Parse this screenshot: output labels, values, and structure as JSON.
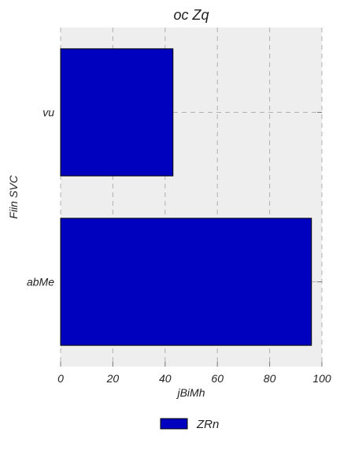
{
  "chart_data": {
    "type": "bar",
    "orientation": "horizontal",
    "title": "oc Zq",
    "xlabel": "jBiMh",
    "ylabel": "Fiin SVC",
    "categories": [
      "abMe",
      "vu"
    ],
    "series": [
      {
        "name": "ZRn",
        "values": [
          96,
          43
        ],
        "color": "#0000bf"
      }
    ],
    "xlim": [
      0,
      100
    ],
    "xticks": [
      0,
      20,
      40,
      60,
      80,
      100
    ],
    "grid": true,
    "legend_position": "bottom-center",
    "plot_background": "#eeeeee",
    "grid_color": "#b0b0b0"
  }
}
